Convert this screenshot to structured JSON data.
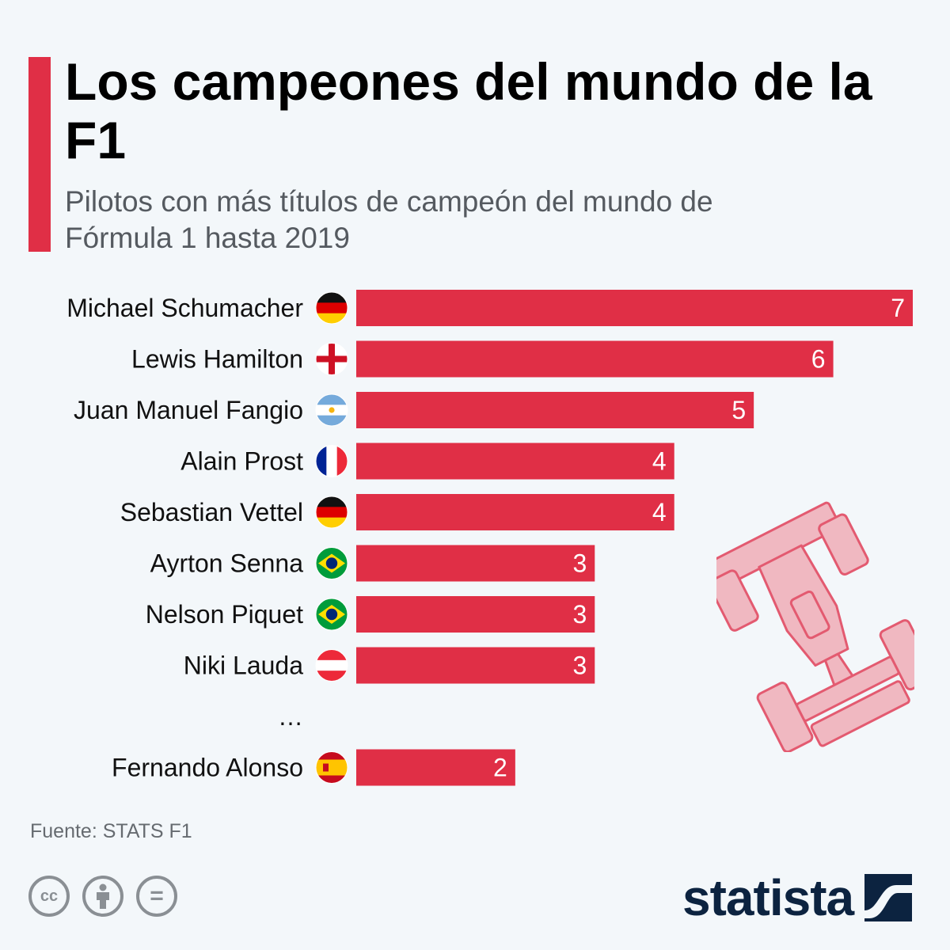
{
  "header": {
    "title": "Los campeones del mundo de la F1",
    "subtitle": "Pilotos con más títulos de campeón del mundo de Fórmula 1 hasta 2019"
  },
  "chart_data": {
    "type": "bar",
    "orientation": "horizontal",
    "title": "Los campeones del mundo de la F1",
    "subtitle": "Pilotos con más títulos de campeón del mundo de Fórmula 1 hasta 2019",
    "categories": [
      "Michael Schumacher",
      "Lewis Hamilton",
      "Juan Manuel Fangio",
      "Alain Prost",
      "Sebastian Vettel",
      "Ayrton Senna",
      "Nelson Piquet",
      "Niki Lauda",
      "…",
      "Fernando Alonso"
    ],
    "values": [
      7,
      6,
      5,
      4,
      4,
      3,
      3,
      3,
      null,
      2
    ],
    "flags": [
      "germany-flag",
      "england-flag",
      "argentina-flag",
      "france-flag",
      "germany-flag",
      "brazil-flag",
      "brazil-flag",
      "austria-flag",
      null,
      "spain-flag"
    ],
    "xlim": [
      0,
      7
    ],
    "grid": false,
    "bar_color": "#e02f46",
    "value_labels": "inside-end"
  },
  "footer": {
    "source": "Fuente: STATS F1",
    "license_icons": [
      "cc-icon",
      "by-icon",
      "nd-icon"
    ],
    "cc_text": "cc",
    "nd_text": "=",
    "brand": "statista"
  },
  "colors": {
    "accent": "#e02f46",
    "background": "#f3f7fa",
    "brand": "#0c2340",
    "car": "#f0b8c1"
  }
}
